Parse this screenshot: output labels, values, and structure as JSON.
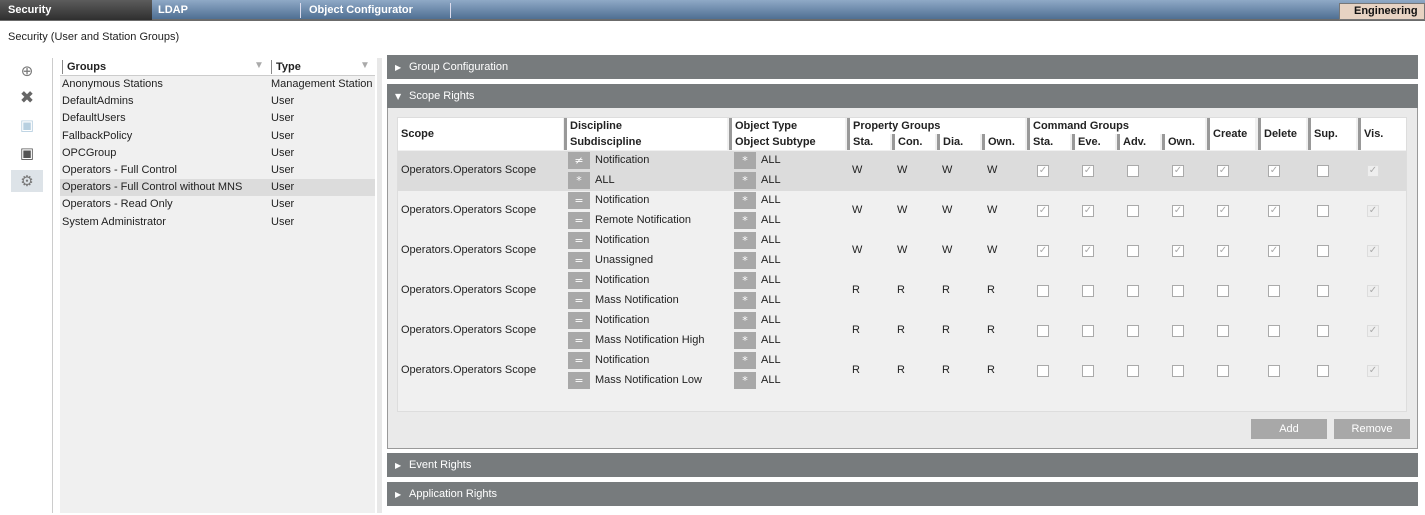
{
  "tabs": [
    {
      "label": "Security",
      "active": true
    },
    {
      "label": "LDAP"
    },
    {
      "label": "Object Configurator"
    }
  ],
  "mode_label": "Engineering",
  "subtitle": "Security (User and Station Groups)",
  "toolbar": {
    "icons": [
      "new-icon",
      "delete-icon",
      "save-icon",
      "save-as-icon",
      "configure-icon"
    ]
  },
  "groups": {
    "headers": {
      "name": "Groups",
      "type": "Type"
    },
    "rows": [
      {
        "name": "Anonymous Stations",
        "type": "Management Station"
      },
      {
        "name": "DefaultAdmins",
        "type": "User"
      },
      {
        "name": "DefaultUsers",
        "type": "User"
      },
      {
        "name": "FallbackPolicy",
        "type": "User"
      },
      {
        "name": "OPCGroup",
        "type": "User"
      },
      {
        "name": "Operators - Full Control",
        "type": "User"
      },
      {
        "name": "Operators - Full Control without MNS",
        "type": "User",
        "selected": true
      },
      {
        "name": "Operators - Read Only",
        "type": "User"
      },
      {
        "name": "System Administrator",
        "type": "User"
      }
    ]
  },
  "sections": {
    "group_config": "Group Configuration",
    "scope_rights": "Scope Rights",
    "event_rights": "Event Rights",
    "application_rights": "Application Rights"
  },
  "scope_table": {
    "headers": {
      "scope": "Scope",
      "discipline": "Discipline",
      "subdiscipline": "Subdiscipline",
      "object_type": "Object Type",
      "object_subtype": "Object Subtype",
      "property_groups": "Property Groups",
      "command_groups": "Command Groups",
      "create": "Create",
      "delete": "Delete",
      "sup": "Sup.",
      "vis": "Vis.",
      "prop_cols": [
        "Sta.",
        "Con.",
        "Dia.",
        "Own."
      ],
      "cmd_cols": [
        "Sta.",
        "Eve.",
        "Adv.",
        "Own."
      ]
    },
    "rows": [
      {
        "scope": "Operators.Operators Scope",
        "disc_op": "≠",
        "discipline": "Notification",
        "sub_op": "*",
        "subdiscipline": "ALL",
        "type_op": "*",
        "object_type": "ALL",
        "subtype_op": "*",
        "object_subtype": "ALL",
        "props": [
          "W",
          "W",
          "W",
          "W"
        ],
        "cmds": [
          true,
          true,
          false,
          true
        ],
        "create": true,
        "delete": true,
        "sup": false,
        "vis": true,
        "selected": true
      },
      {
        "scope": "Operators.Operators Scope",
        "disc_op": "=",
        "discipline": "Notification",
        "sub_op": "=",
        "subdiscipline": "Remote Notification",
        "type_op": "*",
        "object_type": "ALL",
        "subtype_op": "*",
        "object_subtype": "ALL",
        "props": [
          "W",
          "W",
          "W",
          "W"
        ],
        "cmds": [
          true,
          true,
          false,
          true
        ],
        "create": true,
        "delete": true,
        "sup": false,
        "vis": true
      },
      {
        "scope": "Operators.Operators Scope",
        "disc_op": "=",
        "discipline": "Notification",
        "sub_op": "=",
        "subdiscipline": "Unassigned",
        "type_op": "*",
        "object_type": "ALL",
        "subtype_op": "*",
        "object_subtype": "ALL",
        "props": [
          "W",
          "W",
          "W",
          "W"
        ],
        "cmds": [
          true,
          true,
          false,
          true
        ],
        "create": true,
        "delete": true,
        "sup": false,
        "vis": true
      },
      {
        "scope": "Operators.Operators Scope",
        "disc_op": "=",
        "discipline": "Notification",
        "sub_op": "=",
        "subdiscipline": "Mass Notification",
        "type_op": "*",
        "object_type": "ALL",
        "subtype_op": "*",
        "object_subtype": "ALL",
        "props": [
          "R",
          "R",
          "R",
          "R"
        ],
        "cmds": [
          false,
          false,
          false,
          false
        ],
        "create": false,
        "delete": false,
        "sup": false,
        "vis": true
      },
      {
        "scope": "Operators.Operators Scope",
        "disc_op": "=",
        "discipline": "Notification",
        "sub_op": "=",
        "subdiscipline": "Mass Notification High",
        "type_op": "*",
        "object_type": "ALL",
        "subtype_op": "*",
        "object_subtype": "ALL",
        "props": [
          "R",
          "R",
          "R",
          "R"
        ],
        "cmds": [
          false,
          false,
          false,
          false
        ],
        "create": false,
        "delete": false,
        "sup": false,
        "vis": true
      },
      {
        "scope": "Operators.Operators Scope",
        "disc_op": "=",
        "discipline": "Notification",
        "sub_op": "=",
        "subdiscipline": "Mass Notification Low",
        "type_op": "*",
        "object_type": "ALL",
        "subtype_op": "*",
        "object_subtype": "ALL",
        "props": [
          "R",
          "R",
          "R",
          "R"
        ],
        "cmds": [
          false,
          false,
          false,
          false
        ],
        "create": false,
        "delete": false,
        "sup": false,
        "vis": true
      }
    ],
    "add_label": "Add",
    "remove_label": "Remove"
  }
}
